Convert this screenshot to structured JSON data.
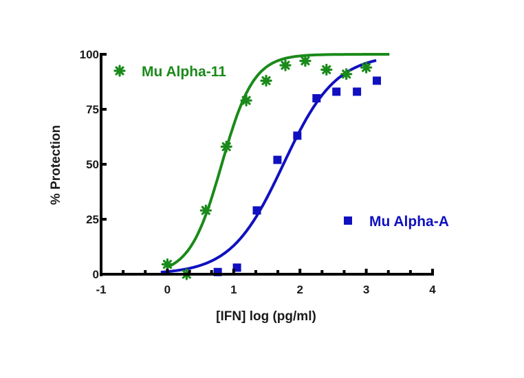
{
  "chart_data": {
    "type": "scatter",
    "title": "",
    "xlabel": "[IFN] log (pg/ml)",
    "ylabel": "% Protection",
    "xlim": [
      -1,
      4
    ],
    "ylim": [
      0,
      100
    ],
    "x_ticks": [
      "-1",
      "0",
      "1",
      "2",
      "3",
      "4"
    ],
    "y_ticks": [
      "0",
      "25",
      "50",
      "75",
      "100"
    ],
    "grid": false,
    "legend_position": "inline",
    "series": [
      {
        "name": "Mu Alpha-11",
        "color": "#1a8a1a",
        "marker": "asterisk",
        "points": [
          {
            "x": 0.0,
            "y": 4.5
          },
          {
            "x": 0.29,
            "y": 0
          },
          {
            "x": 0.58,
            "y": 29
          },
          {
            "x": 0.89,
            "y": 58
          },
          {
            "x": 1.19,
            "y": 79
          },
          {
            "x": 1.49,
            "y": 88
          },
          {
            "x": 1.78,
            "y": 95
          },
          {
            "x": 2.08,
            "y": 97
          },
          {
            "x": 2.4,
            "y": 93
          },
          {
            "x": 2.7,
            "y": 91
          },
          {
            "x": 3.0,
            "y": 94
          }
        ],
        "fit": {
          "model": "sigmoid",
          "bottom": 0,
          "top": 100,
          "logEC50": 0.82,
          "hill": 1.8,
          "x_range": [
            0.0,
            3.35
          ]
        }
      },
      {
        "name": "Mu Alpha-A",
        "color": "#1010c0",
        "marker": "square",
        "points": [
          {
            "x": 0.76,
            "y": 1
          },
          {
            "x": 1.05,
            "y": 3
          },
          {
            "x": 1.35,
            "y": 29
          },
          {
            "x": 1.66,
            "y": 52
          },
          {
            "x": 1.96,
            "y": 63
          },
          {
            "x": 2.25,
            "y": 80
          },
          {
            "x": 2.55,
            "y": 83
          },
          {
            "x": 2.86,
            "y": 83
          },
          {
            "x": 3.16,
            "y": 88
          }
        ],
        "fit": {
          "model": "sigmoid",
          "bottom": 0,
          "top": 100,
          "logEC50": 1.75,
          "hill": 1.1,
          "x_range": [
            -0.1,
            3.15
          ]
        }
      }
    ]
  },
  "legend": {
    "items": [
      {
        "label": "Mu Alpha-11",
        "color": "#1a8a1a",
        "marker": "asterisk"
      },
      {
        "label": "Mu Alpha-A",
        "color": "#1010c0",
        "marker": "square"
      }
    ]
  }
}
